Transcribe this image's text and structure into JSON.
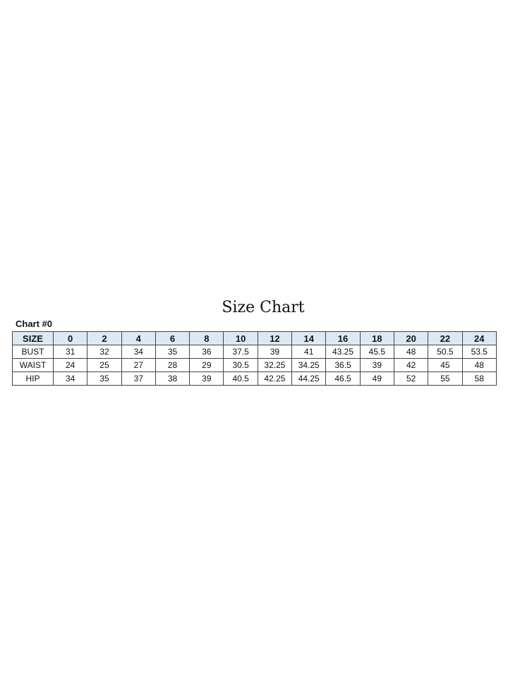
{
  "title": "Size Chart",
  "chart_label": "Chart #0",
  "table": {
    "header": [
      "SIZE",
      "0",
      "2",
      "4",
      "6",
      "8",
      "10",
      "12",
      "14",
      "16",
      "18",
      "20",
      "22",
      "24"
    ],
    "rows": [
      [
        "BUST",
        "31",
        "32",
        "34",
        "35",
        "36",
        "37.5",
        "39",
        "41",
        "43.25",
        "45.5",
        "48",
        "50.5",
        "53.5"
      ],
      [
        "WAIST",
        "24",
        "25",
        "27",
        "28",
        "29",
        "30.5",
        "32.25",
        "34.25",
        "36.5",
        "39",
        "42",
        "45",
        "48"
      ],
      [
        "HIP",
        "34",
        "35",
        "37",
        "38",
        "39",
        "40.5",
        "42.25",
        "44.25",
        "46.5",
        "49",
        "52",
        "55",
        "58"
      ]
    ]
  },
  "colors": {
    "header_bg": "#dce9f4",
    "border": "#444444"
  }
}
